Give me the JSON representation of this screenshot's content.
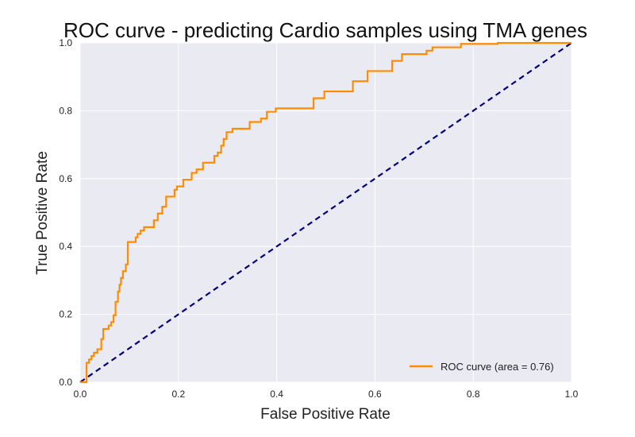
{
  "chart_data": {
    "type": "line",
    "title": "ROC curve - predicting Cardio samples using TMA genes",
    "xlabel": "False Positive Rate",
    "ylabel": "True Positive Rate",
    "xlim": [
      0.0,
      1.0
    ],
    "ylim": [
      0.0,
      1.0
    ],
    "xticks": [
      "0.0",
      "0.2",
      "0.4",
      "0.6",
      "0.8",
      "1.0"
    ],
    "yticks": [
      "0.0",
      "0.2",
      "0.4",
      "0.6",
      "0.8",
      "1.0"
    ],
    "grid": true,
    "legend_position": "lower-right",
    "series": [
      {
        "name": "ROC curve (area = 0.76)",
        "color": "#ff8c00",
        "step": true,
        "x": [
          0.0,
          0.013,
          0.013,
          0.018,
          0.018,
          0.023,
          0.023,
          0.028,
          0.028,
          0.035,
          0.035,
          0.043,
          0.043,
          0.047,
          0.047,
          0.058,
          0.058,
          0.063,
          0.063,
          0.068,
          0.068,
          0.072,
          0.072,
          0.077,
          0.077,
          0.08,
          0.08,
          0.083,
          0.083,
          0.087,
          0.087,
          0.093,
          0.093,
          0.097,
          0.097,
          0.113,
          0.113,
          0.117,
          0.117,
          0.123,
          0.123,
          0.13,
          0.13,
          0.15,
          0.15,
          0.158,
          0.158,
          0.167,
          0.167,
          0.175,
          0.175,
          0.192,
          0.192,
          0.197,
          0.197,
          0.21,
          0.21,
          0.227,
          0.227,
          0.237,
          0.237,
          0.25,
          0.25,
          0.273,
          0.273,
          0.28,
          0.28,
          0.287,
          0.287,
          0.292,
          0.292,
          0.298,
          0.298,
          0.31,
          0.31,
          0.345,
          0.345,
          0.368,
          0.368,
          0.38,
          0.38,
          0.398,
          0.398,
          0.475,
          0.475,
          0.497,
          0.497,
          0.555,
          0.555,
          0.585,
          0.585,
          0.635,
          0.635,
          0.655,
          0.655,
          0.705,
          0.705,
          0.717,
          0.717,
          0.775,
          0.775,
          0.85,
          0.85,
          1.0
        ],
        "y": [
          0.0,
          0.0,
          0.057,
          0.057,
          0.067,
          0.067,
          0.077,
          0.077,
          0.087,
          0.087,
          0.097,
          0.097,
          0.127,
          0.127,
          0.157,
          0.157,
          0.167,
          0.167,
          0.177,
          0.177,
          0.197,
          0.197,
          0.237,
          0.237,
          0.267,
          0.267,
          0.287,
          0.287,
          0.307,
          0.307,
          0.327,
          0.327,
          0.347,
          0.347,
          0.413,
          0.413,
          0.427,
          0.427,
          0.437,
          0.437,
          0.447,
          0.447,
          0.457,
          0.457,
          0.477,
          0.477,
          0.497,
          0.497,
          0.517,
          0.517,
          0.547,
          0.547,
          0.567,
          0.567,
          0.577,
          0.577,
          0.597,
          0.597,
          0.617,
          0.617,
          0.627,
          0.627,
          0.647,
          0.647,
          0.667,
          0.667,
          0.677,
          0.677,
          0.697,
          0.697,
          0.717,
          0.717,
          0.737,
          0.737,
          0.747,
          0.747,
          0.767,
          0.767,
          0.777,
          0.777,
          0.797,
          0.797,
          0.807,
          0.807,
          0.837,
          0.837,
          0.857,
          0.857,
          0.887,
          0.887,
          0.917,
          0.917,
          0.947,
          0.947,
          0.967,
          0.967,
          0.977,
          0.977,
          0.987,
          0.987,
          0.997,
          0.997,
          1.0,
          1.0
        ]
      },
      {
        "name": "",
        "color": "#000080",
        "dashed": true,
        "x": [
          0.0,
          1.0
        ],
        "y": [
          0.0,
          1.0
        ]
      }
    ]
  },
  "colors": {
    "plot_background": "#eaeaf2",
    "grid": "#ffffff",
    "legend_background": "#eaeaf2"
  }
}
